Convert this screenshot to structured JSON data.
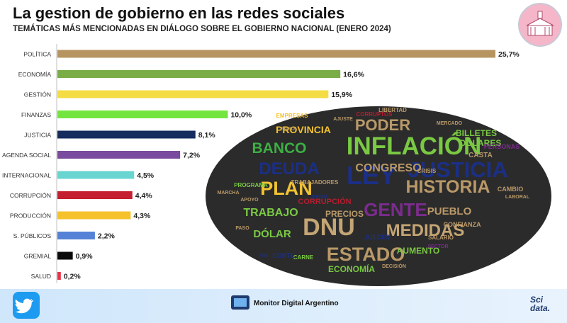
{
  "header": {
    "title": "La gestion de gobierno en las redes sociales",
    "subtitle": "TEMÁTICAS MÁS MENCIONADAS EN DIÁLOGO SOBRE EL GOBIERNO NACIONAL (ENERO 2024)"
  },
  "chart_data": {
    "type": "bar",
    "orientation": "horizontal",
    "title": "TEMÁTICAS MÁS MENCIONADAS EN DIÁLOGO SOBRE EL GOBIERNO NACIONAL (ENERO 2024)",
    "categories": [
      "POLÍTICA",
      "ECONOMÍA",
      "GESTIÓN",
      "FINANZAS",
      "JUSTICIA",
      "AGENDA SOCIAL",
      "INTERNACIONAL",
      "CORRUPCIÓN",
      "PRODUCCIÓN",
      "S. PÚBLICOS",
      "GREMIAL",
      "SALUD"
    ],
    "values": [
      25.7,
      16.6,
      15.9,
      10.0,
      8.1,
      7.2,
      4.5,
      4.4,
      4.3,
      2.2,
      0.9,
      0.2
    ],
    "value_labels": [
      "25,7%",
      "16,6%",
      "15,9%",
      "10,0%",
      "8,1%",
      "7,2%",
      "4,5%",
      "4,4%",
      "4,3%",
      "2,2%",
      "0,9%",
      "0,2%"
    ],
    "colors": [
      "#b69560",
      "#7aad46",
      "#f4dc45",
      "#74e53f",
      "#152c5e",
      "#7a4a9e",
      "#69d5d1",
      "#c41e30",
      "#f6c22c",
      "#5582d6",
      "#0a0a0a",
      "#e8324a"
    ],
    "xlim": [
      0,
      25.7
    ],
    "xlabel": "",
    "ylabel": "",
    "grid": false
  },
  "wordcloud": {
    "words": [
      {
        "text": "INFLACIÓN",
        "color": "#7ac943"
      },
      {
        "text": "JUSTICIA",
        "color": "#1b2f86"
      },
      {
        "text": "LEY",
        "color": "#1b2f86"
      },
      {
        "text": "DNU",
        "color": "#c4a574"
      },
      {
        "text": "GENTE",
        "color": "#7b2c8e"
      },
      {
        "text": "HISTORIA",
        "color": "#b99968"
      },
      {
        "text": "DEUDA",
        "color": "#1b2f86"
      },
      {
        "text": "BANCO",
        "color": "#3cb043"
      },
      {
        "text": "PLAN",
        "color": "#f2c230"
      },
      {
        "text": "ESTADO",
        "color": "#b99968"
      },
      {
        "text": "MEDIDAS",
        "color": "#c4a574"
      },
      {
        "text": "PODER",
        "color": "#b99968"
      },
      {
        "text": "PROVINCIA",
        "color": "#f2c230"
      },
      {
        "text": "CONGRESO",
        "color": "#b99968"
      },
      {
        "text": "TRABAJO",
        "color": "#7ac943"
      },
      {
        "text": "DÓLAR",
        "color": "#7ac943"
      },
      {
        "text": "PUEBLO",
        "color": "#b99968"
      },
      {
        "text": "CORRUPCIÓN",
        "color": "#b11e2f"
      },
      {
        "text": "PRECIOS",
        "color": "#b99968"
      },
      {
        "text": "BILLETES",
        "color": "#7ac943"
      },
      {
        "text": "DÓLARES",
        "color": "#7ac943"
      },
      {
        "text": "AUMENTO",
        "color": "#7ac943"
      },
      {
        "text": "ECONOMÍA",
        "color": "#7ac943"
      },
      {
        "text": "CAMBIO",
        "color": "#b99968"
      },
      {
        "text": "CONFIANZA",
        "color": "#b99968"
      },
      {
        "text": "PROGRAMA",
        "color": "#7ac943"
      },
      {
        "text": "TRABAJADORES",
        "color": "#b99968"
      },
      {
        "text": "EMPRESAS",
        "color": "#f2c230"
      },
      {
        "text": "CORRUPTOS",
        "color": "#b11e2f"
      },
      {
        "text": "LIBERTAD",
        "color": "#b99968"
      },
      {
        "text": "CARNE",
        "color": "#7ac943"
      },
      {
        "text": "CORTE",
        "color": "#1b2f86"
      },
      {
        "text": "JUECES",
        "color": "#1b2f86"
      },
      {
        "text": "SALARIO",
        "color": "#b99968"
      },
      {
        "text": "CASTA",
        "color": "#b99968"
      },
      {
        "text": "PERSONAS",
        "color": "#7b2c8e"
      },
      {
        "text": "CRISIS",
        "color": "#b99968"
      },
      {
        "text": "JUICIO",
        "color": "#1b2f86"
      },
      {
        "text": "FMI",
        "color": "#1b2f86"
      },
      {
        "text": "PASO",
        "color": "#b99968"
      },
      {
        "text": "MARCHA",
        "color": "#b99968"
      },
      {
        "text": "APOYO",
        "color": "#b99968"
      },
      {
        "text": "MERCADO",
        "color": "#b99968"
      },
      {
        "text": "AJUSTE",
        "color": "#b99968"
      },
      {
        "text": "SECTOR",
        "color": "#7b2c8e"
      },
      {
        "text": "DECISIÓN",
        "color": "#b99968"
      },
      {
        "text": "LABORAL",
        "color": "#b99968"
      },
      {
        "text": "PAGO",
        "color": "#b99968"
      }
    ]
  },
  "footer": {
    "twitter_icon": "twitter-bird-icon",
    "brand_label": "Monitor Digital Argentino",
    "scidata_top": "Sci",
    "scidata_bottom": "data.",
    "logo_icon": "government-building-icon"
  }
}
